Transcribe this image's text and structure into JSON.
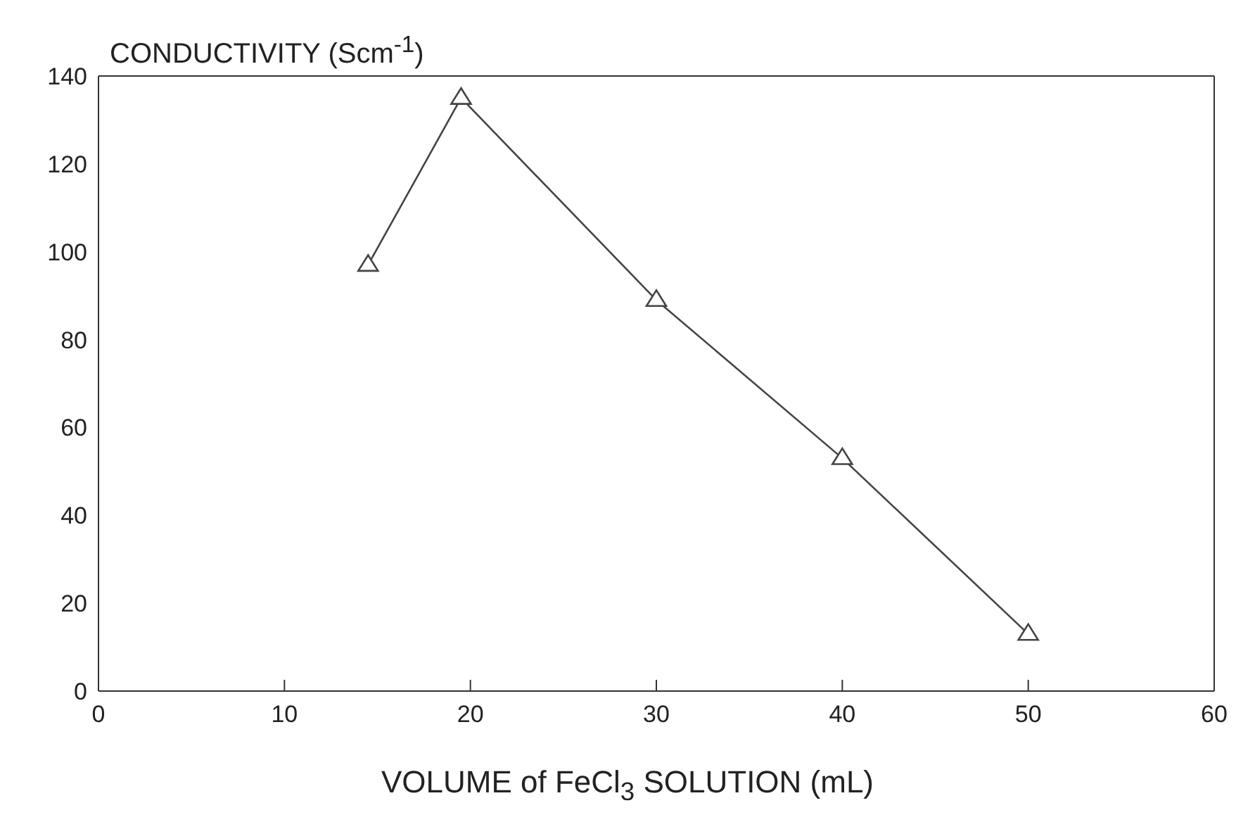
{
  "chart_data": {
    "type": "line",
    "ylabel": "CONDUCTIVITY (Scm$^{-1}$)",
    "xlabel": "VOLUME  of FeCl$_{3}$ SOLUTION (mL)",
    "x": [
      14.5,
      19.5,
      30,
      40,
      50
    ],
    "series": [
      {
        "color": "#444444",
        "values": [
          97,
          135,
          89,
          53,
          13
        ]
      }
    ],
    "xlim": [
      0,
      60
    ],
    "xticks": [
      0,
      10,
      20,
      30,
      40,
      50,
      60
    ],
    "ylim": [
      0,
      140
    ],
    "yticks": [
      0,
      20,
      40,
      60,
      80,
      100,
      120,
      140
    ],
    "grid": false,
    "legend": false,
    "marker": "triangle",
    "line_style": "solid"
  }
}
